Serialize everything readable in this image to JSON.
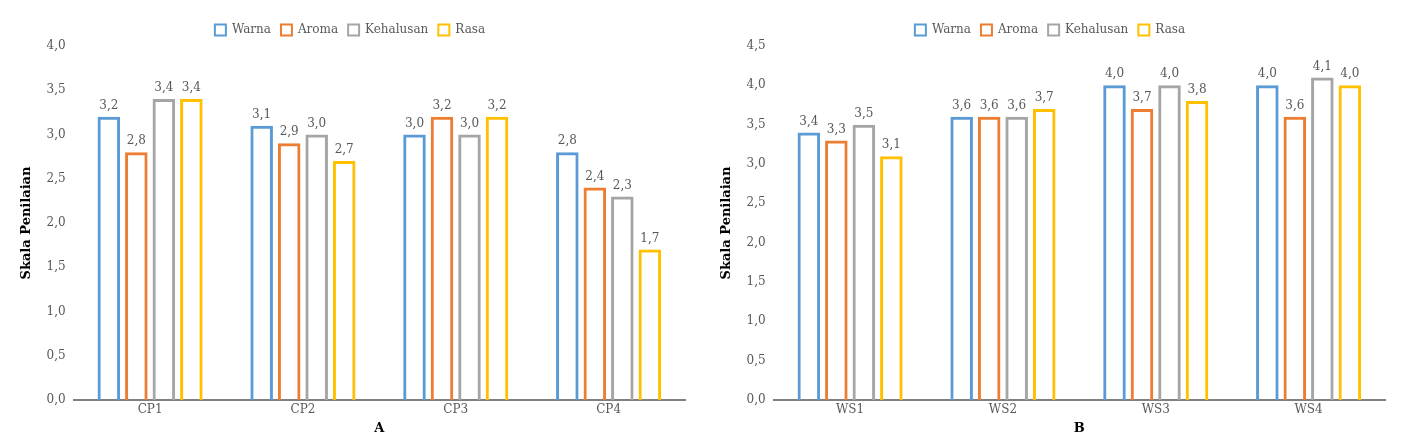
{
  "chart_data": [
    {
      "type": "bar",
      "xlabel": "A",
      "ylabel": "Skala Penilaian",
      "categories": [
        "CP1",
        "CP2",
        "CP3",
        "CP4"
      ],
      "series": [
        {
          "name": "Warna",
          "color": "#5b9bd5",
          "values": [
            3.2,
            3.1,
            3.0,
            2.8
          ],
          "value_labels": [
            "3,2",
            "3,1",
            "3,0",
            "2,8"
          ]
        },
        {
          "name": "Aroma",
          "color": "#ed7d31",
          "values": [
            2.8,
            2.9,
            3.2,
            2.4
          ],
          "value_labels": [
            "2,8",
            "2,9",
            "3,2",
            "2,4"
          ]
        },
        {
          "name": "Kehalusan",
          "color": "#a5a5a5",
          "values": [
            3.4,
            3.0,
            3.0,
            2.3
          ],
          "value_labels": [
            "3,4",
            "3,0",
            "3,0",
            "2,3"
          ]
        },
        {
          "name": "Rasa",
          "color": "#ffc000",
          "values": [
            3.4,
            2.7,
            3.2,
            1.7
          ],
          "value_labels": [
            "3,4",
            "2,7",
            "3,2",
            "1,7"
          ]
        }
      ],
      "ylim": [
        0,
        4
      ],
      "yticks": [
        {
          "value": 0,
          "label": "0,0"
        },
        {
          "value": 0.5,
          "label": "0,5"
        },
        {
          "value": 1,
          "label": "1,0"
        },
        {
          "value": 1.5,
          "label": "1,5"
        },
        {
          "value": 2,
          "label": "2,0"
        },
        {
          "value": 2.5,
          "label": "2,5"
        },
        {
          "value": 3,
          "label": "3,0"
        },
        {
          "value": 3.5,
          "label": "3,5"
        },
        {
          "value": 4,
          "label": "4,0"
        }
      ],
      "grid": false,
      "legend": "top"
    },
    {
      "type": "bar",
      "xlabel": "B",
      "ylabel": "Skala Penilaian",
      "categories": [
        "WS1",
        "WS2",
        "WS3",
        "WS4"
      ],
      "series": [
        {
          "name": "Warna",
          "color": "#5b9bd5",
          "values": [
            3.4,
            3.6,
            4.0,
            4.0
          ],
          "value_labels": [
            "3,4",
            "3,6",
            "4,0",
            "4,0"
          ]
        },
        {
          "name": "Aroma",
          "color": "#ed7d31",
          "values": [
            3.3,
            3.6,
            3.7,
            3.6
          ],
          "value_labels": [
            "3,3",
            "3,6",
            "3,7",
            "3,6"
          ]
        },
        {
          "name": "Kehalusan",
          "color": "#a5a5a5",
          "values": [
            3.5,
            3.6,
            4.0,
            4.1
          ],
          "value_labels": [
            "3,5",
            "3,6",
            "4,0",
            "4,1"
          ]
        },
        {
          "name": "Rasa",
          "color": "#ffc000",
          "values": [
            3.1,
            3.7,
            3.8,
            4.0
          ],
          "value_labels": [
            "3,1",
            "3,7",
            "3,8",
            "4,0"
          ]
        }
      ],
      "ylim": [
        0,
        4.5
      ],
      "yticks": [
        {
          "value": 0,
          "label": "0,0"
        },
        {
          "value": 0.5,
          "label": "0,5"
        },
        {
          "value": 1,
          "label": "1,0"
        },
        {
          "value": 1.5,
          "label": "1,5"
        },
        {
          "value": 2,
          "label": "2,0"
        },
        {
          "value": 2.5,
          "label": "2,5"
        },
        {
          "value": 3,
          "label": "3,0"
        },
        {
          "value": 3.5,
          "label": "3,5"
        },
        {
          "value": 4,
          "label": "4,0"
        },
        {
          "value": 4.5,
          "label": "4,5"
        }
      ],
      "grid": false,
      "legend": "top"
    }
  ]
}
